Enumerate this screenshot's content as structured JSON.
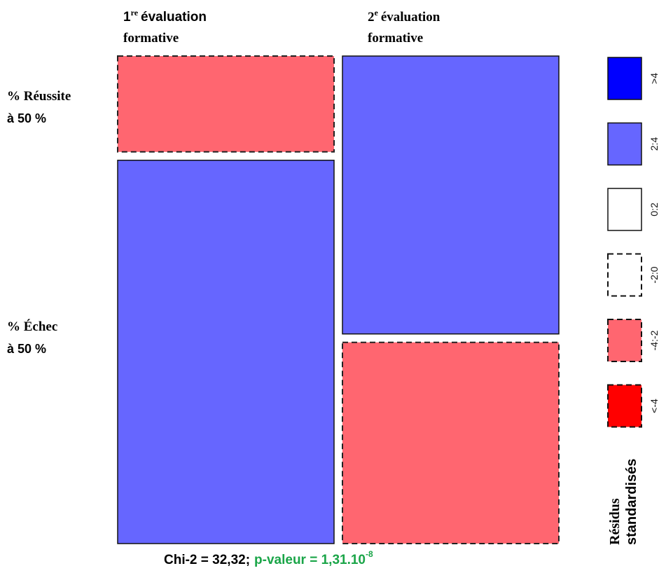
{
  "chart_data": {
    "type": "mosaic",
    "columns": [
      {
        "label_number": "1",
        "label_sup": "re",
        "label_rest": "évaluation",
        "label_line2": "formative"
      },
      {
        "label_number": "2",
        "label_sup": "e",
        "label_rest": "évaluation",
        "label_line2": "formative"
      }
    ],
    "rows": [
      {
        "line1": "% Réussite",
        "line2": "à 50 %"
      },
      {
        "line1": "% Échec",
        "line2": "à 50 %"
      }
    ],
    "column_share": [
      0.5,
      0.5
    ],
    "row_share_by_column": [
      [
        0.2,
        0.8
      ],
      [
        0.58,
        0.42
      ]
    ],
    "residual_class": [
      [
        "-4:-2",
        "2:4"
      ],
      [
        "2:4",
        "-4:-2"
      ]
    ],
    "legend": {
      "title_line1": "Résidus",
      "title_line2": "standardisés",
      "entries": [
        {
          "label": ">4",
          "color": "#0000ff",
          "dashed": false
        },
        {
          "label": "2:4",
          "color": "#6666ff",
          "dashed": false
        },
        {
          "label": "0:2",
          "color": "#ffffff",
          "dashed": false
        },
        {
          "label": "-2:0",
          "color": "#ffffff",
          "dashed": true
        },
        {
          "label": "-4:-2",
          "color": "#ff6670",
          "dashed": true
        },
        {
          "label": "<-4",
          "color": "#ff0000",
          "dashed": true
        }
      ]
    },
    "statistic": {
      "chi2_text": "Chi-2 = 32,32;",
      "p_text": "p-valeur = 1,31.10",
      "p_exponent": "-8",
      "p_color": "#1aa548"
    }
  }
}
